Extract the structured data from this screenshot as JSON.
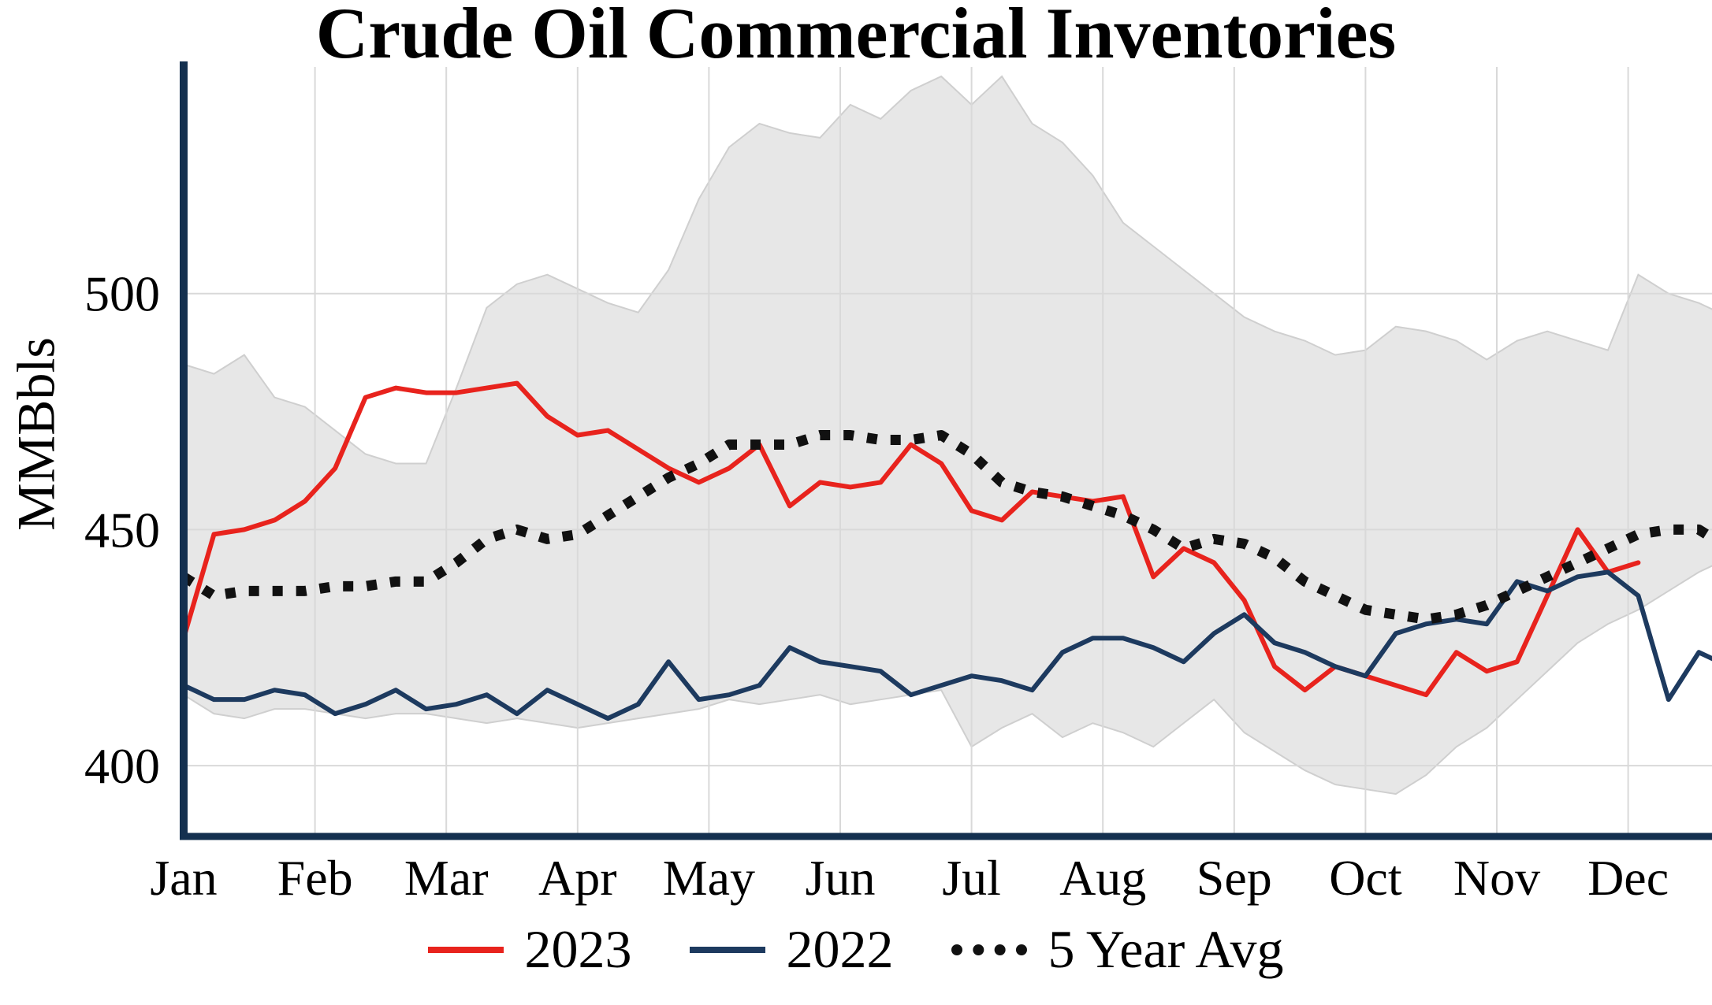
{
  "chart_data": {
    "type": "line",
    "title": "Crude Oil Commercial Inventories",
    "ylabel": "MMBbls",
    "x_tick_labels": [
      "Jan",
      "Feb",
      "Mar",
      "Apr",
      "May",
      "Jun",
      "Jul",
      "Aug",
      "Sep",
      "Oct",
      "Nov",
      "Dec"
    ],
    "y_ticks": [
      400,
      450,
      500
    ],
    "ylim": [
      385,
      548
    ],
    "points_per_year": 52,
    "grid": true,
    "legend_position": "bottom",
    "series": [
      {
        "name": "2023",
        "color": "#e8231d",
        "style": "solid",
        "values": [
          427,
          449,
          450,
          452,
          456,
          463,
          478,
          480,
          479,
          479,
          480,
          481,
          474,
          470,
          471,
          467,
          463,
          460,
          463,
          468,
          455,
          460,
          459,
          460,
          468,
          464,
          454,
          452,
          458,
          457,
          456,
          457,
          440,
          446,
          443,
          435,
          421,
          416,
          421,
          419,
          417,
          415,
          424,
          420,
          422,
          436,
          450,
          441,
          443
        ]
      },
      {
        "name": "2022",
        "color": "#1d3a5f",
        "style": "solid",
        "values": [
          417,
          414,
          414,
          416,
          415,
          411,
          413,
          416,
          412,
          413,
          415,
          411,
          416,
          413,
          410,
          413,
          422,
          414,
          415,
          417,
          425,
          422,
          421,
          420,
          415,
          417,
          419,
          418,
          416,
          424,
          427,
          427,
          425,
          422,
          428,
          432,
          426,
          424,
          421,
          419,
          428,
          430,
          431,
          430,
          439,
          437,
          440,
          441,
          436,
          414,
          424,
          421
        ]
      },
      {
        "name": "5 Year Avg",
        "color": "#111111",
        "style": "dotted",
        "values": [
          440,
          436,
          437,
          437,
          437,
          438,
          438,
          439,
          439,
          443,
          448,
          450,
          448,
          449,
          453,
          457,
          461,
          464,
          468,
          468,
          468,
          470,
          470,
          469,
          469,
          470,
          466,
          460,
          458,
          457,
          455,
          453,
          450,
          446,
          448,
          447,
          444,
          439,
          436,
          433,
          432,
          431,
          432,
          434,
          437,
          440,
          443,
          446,
          449,
          450,
          450,
          446
        ]
      }
    ],
    "range_band": {
      "fill": "#e7e7e7",
      "stroke": "#cfcfcf",
      "upper": [
        485,
        483,
        487,
        478,
        476,
        471,
        466,
        464,
        464,
        480,
        497,
        502,
        504,
        501,
        498,
        496,
        505,
        520,
        531,
        536,
        534,
        533,
        540,
        537,
        543,
        546,
        540,
        546,
        536,
        532,
        525,
        515,
        510,
        505,
        500,
        495,
        492,
        490,
        487,
        488,
        493,
        492,
        490,
        486,
        490,
        492,
        490,
        488,
        504,
        500,
        498,
        495
      ],
      "lower": [
        415,
        411,
        410,
        412,
        412,
        411,
        410,
        411,
        411,
        410,
        409,
        410,
        409,
        408,
        409,
        410,
        411,
        412,
        414,
        413,
        414,
        415,
        413,
        414,
        415,
        416,
        404,
        408,
        411,
        406,
        409,
        407,
        404,
        409,
        414,
        407,
        403,
        399,
        396,
        395,
        394,
        398,
        404,
        408,
        414,
        420,
        426,
        430,
        433,
        437,
        441,
        444
      ]
    }
  },
  "colors": {
    "axis": "#14304f",
    "grid": "#d9d9d9",
    "background": "#ffffff",
    "text": "#000000"
  }
}
